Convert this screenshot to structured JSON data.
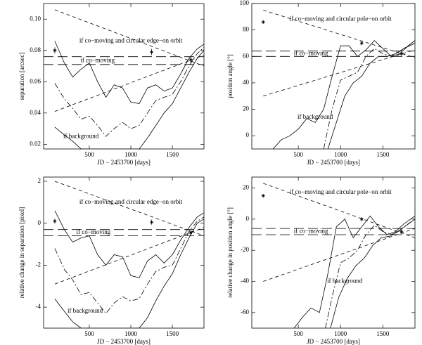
{
  "chart_data": [
    {
      "type": "line",
      "xlabel": "JD − 2453700 [days]",
      "ylabel": "separation [arcsec]",
      "xlim": [
        -50,
        1880
      ],
      "xticks": [
        500,
        1000,
        1500
      ],
      "ylim": [
        0.017,
        0.11
      ],
      "yticks": [
        0.02,
        0.04,
        0.06,
        0.08,
        {
          "value": 0.1,
          "label": "0.10"
        }
      ],
      "annotations": [
        "if co−moving and circular edge−on orbit",
        "if co−moving",
        "if background"
      ],
      "series": [
        {
          "style": "solid",
          "x": [
            85,
            200,
            300,
            400,
            500,
            600,
            700,
            800,
            900,
            1000,
            1100,
            1200,
            1300,
            1400,
            1500,
            1600,
            1700,
            1800,
            1880
          ],
          "values": [
            0.086,
            0.072,
            0.063,
            0.068,
            0.072,
            0.06,
            0.05,
            0.058,
            0.056,
            0.047,
            0.046,
            0.056,
            0.058,
            0.054,
            0.056,
            0.065,
            0.075,
            0.081,
            0.084
          ]
        },
        {
          "style": "dashdot",
          "x": [
            85,
            200,
            300,
            400,
            500,
            600,
            700,
            800,
            900,
            1000,
            1100,
            1200,
            1300,
            1400,
            1500,
            1600,
            1700,
            1800,
            1880
          ],
          "values": [
            0.059,
            0.049,
            0.043,
            0.036,
            0.038,
            0.032,
            0.025,
            0.03,
            0.034,
            0.03,
            0.032,
            0.04,
            0.048,
            0.05,
            0.052,
            0.06,
            0.07,
            0.078,
            0.082
          ]
        },
        {
          "style": "solid",
          "x": [
            85,
            200,
            300,
            400,
            1100,
            1200,
            1300,
            1400,
            1500,
            1600,
            1700,
            1800,
            1880
          ],
          "values": [
            0.031,
            0.026,
            0.022,
            0.017,
            0.017,
            0.024,
            0.032,
            0.04,
            0.046,
            0.056,
            0.066,
            0.075,
            0.08
          ]
        },
        {
          "style": "dashed",
          "x": [
            85,
            1880
          ],
          "values": [
            0.106,
            0.07
          ]
        },
        {
          "style": "dashed",
          "x": [
            85,
            1880
          ],
          "values": [
            0.041,
            0.077
          ]
        },
        {
          "style": "longdash",
          "x": [
            -50,
            1880
          ],
          "values": [
            0.076,
            0.076
          ]
        },
        {
          "style": "longdash",
          "x": [
            -50,
            1880
          ],
          "values": [
            0.071,
            0.071
          ]
        }
      ],
      "points": {
        "x": [
          85,
          1250,
          1720
        ],
        "values": [
          0.08,
          0.079,
          0.074
        ],
        "errors": [
          0.002,
          0.002,
          0.002
        ]
      }
    },
    {
      "type": "line",
      "xlabel": "JD − 2453700 [days]",
      "ylabel": "position angle [°]",
      "xlim": [
        -50,
        1880
      ],
      "xticks": [
        500,
        1000,
        1500
      ],
      "ylim": [
        -10,
        100
      ],
      "yticks": [
        0,
        20,
        40,
        60,
        80,
        100
      ],
      "annotations": [
        "if co−moving and circular pole−on orbit",
        "if co−moving",
        "if background"
      ],
      "series": [
        {
          "style": "solid",
          "x": [
            200,
            300,
            400,
            500,
            600,
            700,
            800,
            900,
            1000,
            1100,
            1200,
            1300,
            1400,
            1500,
            1600,
            1700,
            1800,
            1880
          ],
          "values": [
            -10,
            -3,
            0,
            5,
            13,
            10,
            20,
            45,
            68,
            68,
            60,
            65,
            72,
            66,
            60,
            62,
            68,
            72
          ]
        },
        {
          "style": "dashdot",
          "x": [
            800,
            900,
            1000,
            1100,
            1200,
            1300,
            1400,
            1500,
            1600,
            1700,
            1800,
            1880
          ],
          "values": [
            -10,
            20,
            42,
            45,
            48,
            60,
            66,
            62,
            60,
            64,
            68,
            72
          ]
        },
        {
          "style": "solid",
          "x": [
            850,
            950,
            1050,
            1150,
            1250,
            1350,
            1450,
            1550,
            1650,
            1750,
            1880
          ],
          "values": [
            -10,
            10,
            30,
            40,
            45,
            55,
            60,
            60,
            62,
            66,
            70
          ]
        },
        {
          "style": "dashed",
          "x": [
            85,
            1880
          ],
          "values": [
            95,
            59
          ]
        },
        {
          "style": "dashed",
          "x": [
            85,
            1880
          ],
          "values": [
            30,
            65
          ]
        },
        {
          "style": "longdash",
          "x": [
            -50,
            1880
          ],
          "values": [
            64,
            64
          ]
        },
        {
          "style": "longdash",
          "x": [
            -50,
            1880
          ],
          "values": [
            60,
            60
          ]
        }
      ],
      "points": {
        "x": [
          85,
          1250,
          1720
        ],
        "values": [
          86,
          70,
          62
        ],
        "errors": [
          1.5,
          1.5,
          1.5
        ]
      }
    },
    {
      "type": "line",
      "xlabel": "JD − 2453700 [days]",
      "ylabel": "relative change in separation [pixel]",
      "xlim": [
        -50,
        1880
      ],
      "xticks": [
        500,
        1000,
        1500
      ],
      "ylim": [
        -5,
        2.2
      ],
      "yticks": [
        -4,
        -2,
        0,
        2
      ],
      "annotations": [
        "if co−moving and circular edge−on orbit",
        "if co−moving",
        "if background"
      ],
      "series": [
        {
          "style": "solid",
          "x": [
            85,
            200,
            300,
            400,
            500,
            600,
            700,
            800,
            900,
            1000,
            1100,
            1200,
            1300,
            1400,
            1500,
            1600,
            1700,
            1800,
            1880
          ],
          "values": [
            0.6,
            -0.3,
            -0.9,
            -0.7,
            -0.6,
            -1.5,
            -2.0,
            -1.5,
            -1.6,
            -2.5,
            -2.6,
            -1.8,
            -1.5,
            -1.9,
            -1.5,
            -0.8,
            -0.2,
            0.3,
            0.5
          ]
        },
        {
          "style": "dashdot",
          "x": [
            85,
            200,
            300,
            400,
            500,
            600,
            700,
            800,
            900,
            1000,
            1100,
            1200,
            1300,
            1400,
            1500,
            1600,
            1700,
            1800,
            1880
          ],
          "values": [
            -1.2,
            -2.2,
            -2.7,
            -3.4,
            -3.3,
            -3.8,
            -4.3,
            -3.8,
            -3.5,
            -3.7,
            -3.6,
            -2.9,
            -2.3,
            -2.1,
            -2.0,
            -1.2,
            -0.4,
            0.1,
            0.3
          ]
        },
        {
          "style": "solid",
          "x": [
            85,
            200,
            300,
            400,
            1100,
            1200,
            1300,
            1400,
            1500,
            1600,
            1700,
            1800,
            1880
          ],
          "values": [
            -3.6,
            -4.2,
            -4.7,
            -5.0,
            -5.0,
            -4.5,
            -3.7,
            -3.0,
            -2.4,
            -1.5,
            -0.7,
            0,
            0.2
          ]
        },
        {
          "style": "dashed",
          "x": [
            85,
            1880
          ],
          "values": [
            2.0,
            -0.6
          ]
        },
        {
          "style": "dashed",
          "x": [
            85,
            1880
          ],
          "values": [
            -2.9,
            -0.2
          ]
        },
        {
          "style": "longdash",
          "x": [
            -50,
            1880
          ],
          "values": [
            -0.3,
            -0.3
          ]
        },
        {
          "style": "longdash",
          "x": [
            -50,
            1880
          ],
          "values": [
            -0.6,
            -0.6
          ]
        }
      ],
      "points": {
        "x": [
          85,
          1250,
          1720
        ],
        "values": [
          0.1,
          0.05,
          -0.45
        ],
        "errors": [
          0.12,
          0.12,
          0.12
        ]
      }
    },
    {
      "type": "line",
      "xlabel": "JD − 2453700 [days]",
      "ylabel": "relative change in position angle [°]",
      "xlim": [
        -50,
        1880
      ],
      "xticks": [
        500,
        1000,
        1500
      ],
      "ylim": [
        -70,
        27
      ],
      "yticks": [
        -60,
        -40,
        -20,
        0,
        20
      ],
      "annotations": [
        "if co−moving and circular pole−on orbit",
        "if co−moving",
        "if background"
      ],
      "series": [
        {
          "style": "solid",
          "x": [
            450,
            550,
            650,
            750,
            850,
            950,
            1050,
            1150,
            1250,
            1350,
            1450,
            1550,
            1650,
            1750,
            1880
          ],
          "values": [
            -70,
            -63,
            -57,
            -60,
            -35,
            -5,
            0,
            -12,
            -5,
            2,
            -5,
            -10,
            -8,
            -3,
            2
          ]
        },
        {
          "style": "dashdot",
          "x": [
            820,
            900,
            1000,
            1100,
            1200,
            1300,
            1400,
            1500,
            1600,
            1700,
            1800,
            1880
          ],
          "values": [
            -70,
            -50,
            -28,
            -25,
            -20,
            -10,
            -4,
            -8,
            -10,
            -7,
            -3,
            0
          ]
        },
        {
          "style": "solid",
          "x": [
            880,
            980,
            1080,
            1180,
            1280,
            1380,
            1480,
            1580,
            1680,
            1780,
            1880
          ],
          "values": [
            -70,
            -50,
            -38,
            -30,
            -25,
            -17,
            -12,
            -11,
            -8,
            -4,
            0
          ]
        },
        {
          "style": "dashed",
          "x": [
            85,
            1880
          ],
          "values": [
            23,
            -12
          ]
        },
        {
          "style": "dashed",
          "x": [
            85,
            1880
          ],
          "values": [
            -40,
            -6
          ]
        },
        {
          "style": "longdash",
          "x": [
            -50,
            1880
          ],
          "values": [
            -6,
            -6
          ]
        },
        {
          "style": "longdash",
          "x": [
            -50,
            1880
          ],
          "values": [
            -10,
            -10
          ]
        }
      ],
      "points": {
        "x": [
          85,
          1250,
          1720
        ],
        "values": [
          15,
          0,
          -8
        ],
        "errors": [
          1.2,
          1.2,
          1.2
        ]
      }
    }
  ]
}
